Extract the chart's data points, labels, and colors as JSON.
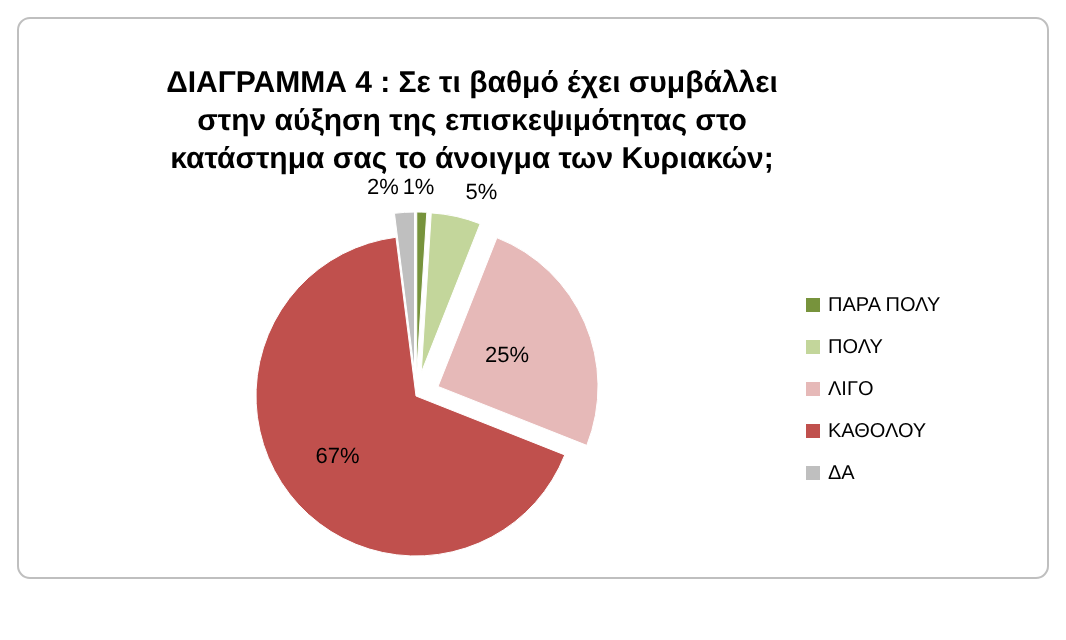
{
  "chart_data": {
    "type": "pie",
    "title": "ΔΙΑΓΡΑΜΜΑ 4 : Σε τι βαθμό έχει συμβάλλει στην αύξηση της επισκεψιμότητας στο κατάστημα σας το άνοιγμα των Κυριακών;",
    "categories": [
      "ΠΑΡΑ ΠΟΛΥ",
      "ΠΟΛΥ",
      "ΛΙΓΟ",
      "ΚΑΘΟΛΟΥ",
      "ΔΑ"
    ],
    "values": [
      1,
      5,
      25,
      67,
      2
    ],
    "value_labels": [
      "1%",
      "5%",
      "25%",
      "67%",
      "2%"
    ],
    "colors": [
      "#77933c",
      "#c3d69b",
      "#e6b9b8",
      "#c0504d",
      "#bfbfbf"
    ],
    "legend": "right"
  }
}
